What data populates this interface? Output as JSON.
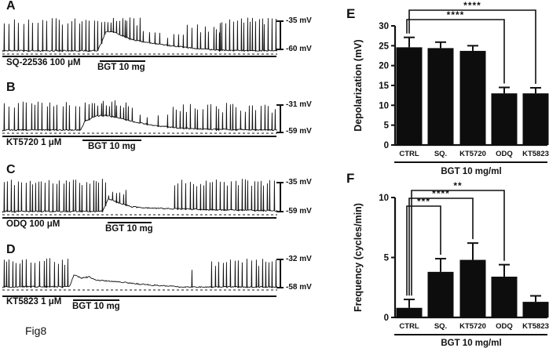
{
  "figure_label": "Fig8",
  "trace_panels": [
    {
      "letter": "A",
      "drug": "SQ-22536 100 μM",
      "bgt": "BGT 10 mg",
      "scale_top": "-35 mV",
      "scale_bottom": "-60 mV"
    },
    {
      "letter": "B",
      "drug": "KT5720 1 μM",
      "bgt": "BGT 10 mg",
      "scale_top": "-31 mV",
      "scale_bottom": "-59 mV"
    },
    {
      "letter": "C",
      "drug": "ODQ 100 μM",
      "bgt": "BGT 10 mg",
      "scale_top": "-35 mV",
      "scale_bottom": "-59 mV"
    },
    {
      "letter": "D",
      "drug": "KT5823 1 μM",
      "bgt": "BGT 10 mg",
      "scale_top": "-32 mV",
      "scale_bottom": "-58 mV"
    }
  ],
  "chart_data": [
    {
      "id": "E",
      "panel_letter": "E",
      "type": "bar",
      "title": "",
      "xlabel": "BGT 10 mg/ml",
      "ylabel": "Depolarization (mV)",
      "categories": [
        "CTRL",
        "SQ.",
        "KT5720",
        "ODQ",
        "KT5823"
      ],
      "values": [
        24.6,
        24.4,
        23.7,
        13.0,
        13.0
      ],
      "errors_plus": [
        2.5,
        1.5,
        1.3,
        1.5,
        1.4
      ],
      "ylim": [
        0,
        30
      ],
      "ytick_step": 5,
      "grid": false,
      "bar_color": "#0d0d0d",
      "legend_position": "none",
      "comparisons": [
        {
          "from": "CTRL",
          "to": "ODQ",
          "label": "****"
        },
        {
          "from": "CTRL",
          "to": "KT5823",
          "label": "****"
        }
      ]
    },
    {
      "id": "F",
      "panel_letter": "F",
      "type": "bar",
      "title": "",
      "xlabel": "BGT 10 mg/ml",
      "ylabel": "Frequency (cycles/min)",
      "categories": [
        "CTRL",
        "SQ.",
        "KT5720",
        "ODQ",
        "KT5823"
      ],
      "values": [
        0.8,
        3.8,
        4.8,
        3.4,
        1.3
      ],
      "errors_plus": [
        0.7,
        1.1,
        1.4,
        1.0,
        0.5
      ],
      "ylim": [
        0,
        10
      ],
      "ytick_step": 5,
      "grid": false,
      "bar_color": "#0d0d0d",
      "legend_position": "none",
      "comparisons": [
        {
          "from": "CTRL",
          "to": "SQ.",
          "label": "***"
        },
        {
          "from": "CTRL",
          "to": "KT5720",
          "label": "****"
        },
        {
          "from": "CTRL",
          "to": "ODQ",
          "label": "**"
        }
      ]
    }
  ]
}
